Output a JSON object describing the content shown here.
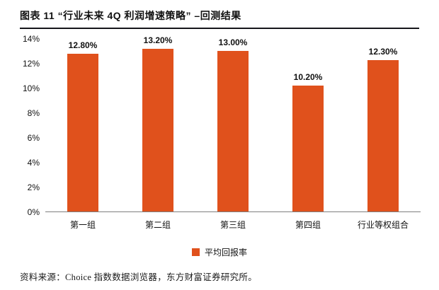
{
  "header": {
    "title": "图表 11 “行业未来 4Q 利润增速策略” –回测结果"
  },
  "chart_data": {
    "type": "bar",
    "title": "“行业未来4Q利润增速策略”回测结果",
    "categories": [
      "第一组",
      "第二组",
      "第三组",
      "第四组",
      "行业等权组合"
    ],
    "values": [
      12.8,
      13.2,
      13.0,
      10.2,
      12.3
    ],
    "labels": [
      "12.80%",
      "13.20%",
      "13.00%",
      "10.20%",
      "12.30%"
    ],
    "ylim": [
      0,
      14
    ],
    "ytick_step": 2,
    "yticks": [
      "0%",
      "2%",
      "4%",
      "6%",
      "8%",
      "10%",
      "12%",
      "14%"
    ],
    "grid": false,
    "bar_color": "#E0511C",
    "legend_position": "bottom",
    "legend": [
      {
        "label": "平均回报率",
        "color": "#E0511C"
      }
    ]
  },
  "footer": {
    "source": "资料来源：Choice 指数数据浏览器，东方财富证券研究所。"
  }
}
